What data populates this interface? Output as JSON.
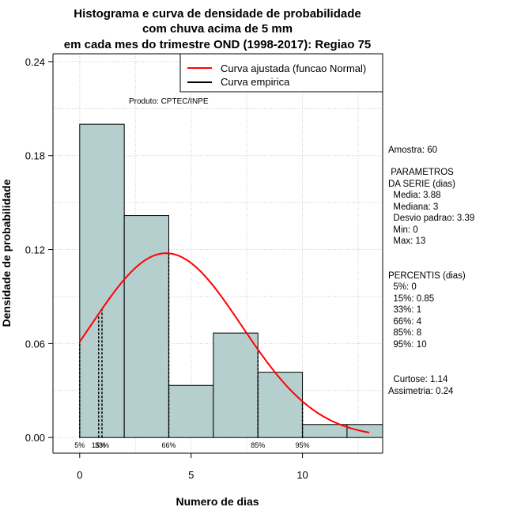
{
  "chart_data": {
    "type": "bar",
    "title_lines": [
      "Histograma e curva de densidade de probabilidade",
      "com chuva acima de 5 mm",
      "em cada mes do trimestre OND (1998-2017): Regiao 75"
    ],
    "xlabel": "Numero de dias",
    "ylabel": "Densidade de probabilidade",
    "xlim": [
      -1.2,
      13.6
    ],
    "ylim": [
      -0.01,
      0.245
    ],
    "x_ticks": [
      0,
      5,
      10
    ],
    "y_ticks": [
      0.0,
      0.06,
      0.12,
      0.18,
      0.24
    ],
    "y_tick_labels": [
      "0.00",
      "0.06",
      "0.12",
      "0.18",
      "0.24"
    ],
    "bins": [
      {
        "x0": 0,
        "x1": 2,
        "density": 0.2
      },
      {
        "x0": 2,
        "x1": 4,
        "density": 0.1417
      },
      {
        "x0": 4,
        "x1": 6,
        "density": 0.0333
      },
      {
        "x0": 6,
        "x1": 8,
        "density": 0.0667
      },
      {
        "x0": 8,
        "x1": 10,
        "density": 0.0417
      },
      {
        "x0": 10,
        "x1": 12,
        "density": 0.0083
      },
      {
        "x0": 12,
        "x1": 14,
        "density": 0.0083
      }
    ],
    "bar_color": "#b5cfcf",
    "curve_color": "#ff0000",
    "normal_curve": {
      "mean": 3.88,
      "sd": 3.39,
      "x_from": 0,
      "x_to": 13
    },
    "percentile_lines": [
      {
        "label": "5%",
        "x": 0
      },
      {
        "label": "15%",
        "x": 0.85
      },
      {
        "label": "33%",
        "x": 1
      },
      {
        "label": "66%",
        "x": 4
      },
      {
        "label": "85%",
        "x": 8
      },
      {
        "label": "95%",
        "x": 10
      }
    ],
    "legend": {
      "position": "top-right",
      "entries": [
        {
          "label": "Curva ajustada (funcao Normal)",
          "color": "#ff0000"
        },
        {
          "label": "Curva empirica",
          "color": "#000000"
        }
      ]
    },
    "grid": true
  },
  "product_note": "Produto: CPTEC/INPE",
  "stats": {
    "amostra": "Amostra: 60",
    "param_header_1": " PARAMETROS",
    "param_header_2": "DA SERIE (dias)",
    "media": "  Media: 3.88",
    "mediana": "  Mediana: 3",
    "desvio": "  Desvio padrao: 3.39",
    "min": "  Min: 0",
    "max": "  Max: 13",
    "percentis_header": "PERCENTIS (dias)",
    "p5": "  5%: 0",
    "p15": "  15%: 0.85",
    "p33": "  33%: 1",
    "p66": "  66%: 4",
    "p85": "  85%: 8",
    "p95": "  95%: 10",
    "curtose": "  Curtose: 1.14",
    "assimetria": "Assimetria: 0.24"
  }
}
